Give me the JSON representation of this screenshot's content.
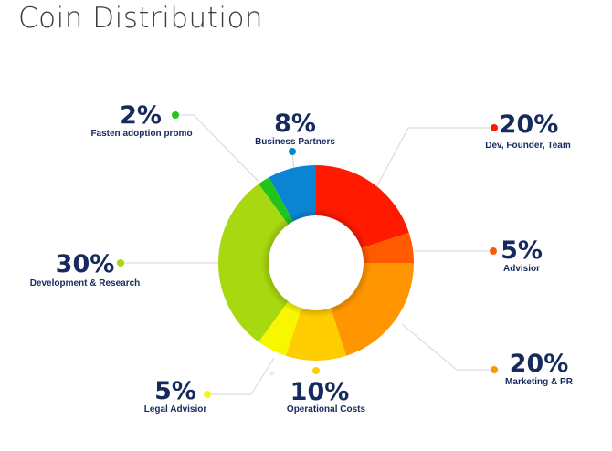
{
  "title": "Coin Distribution",
  "chart_data": {
    "type": "pie",
    "title": "Coin Distribution",
    "donut": true,
    "unit": "%",
    "slices": [
      {
        "label": "Dev, Founder, Team",
        "value": 20,
        "color": "#ff1a00"
      },
      {
        "label": "Advisior",
        "value": 5,
        "color": "#ff5a00"
      },
      {
        "label": "Marketing & PR",
        "value": 20,
        "color": "#ff9500"
      },
      {
        "label": "Operational Costs",
        "value": 10,
        "color": "#ffcc00"
      },
      {
        "label": "Legal Advisior",
        "value": 5,
        "color": "#f7f700"
      },
      {
        "label": "Development & Research",
        "value": 30,
        "color": "#a8d80f"
      },
      {
        "label": "Fasten adoption promo",
        "value": 2,
        "color": "#22c41a"
      },
      {
        "label": "Business Partners",
        "value": 8,
        "color": "#0b85d3"
      }
    ]
  }
}
